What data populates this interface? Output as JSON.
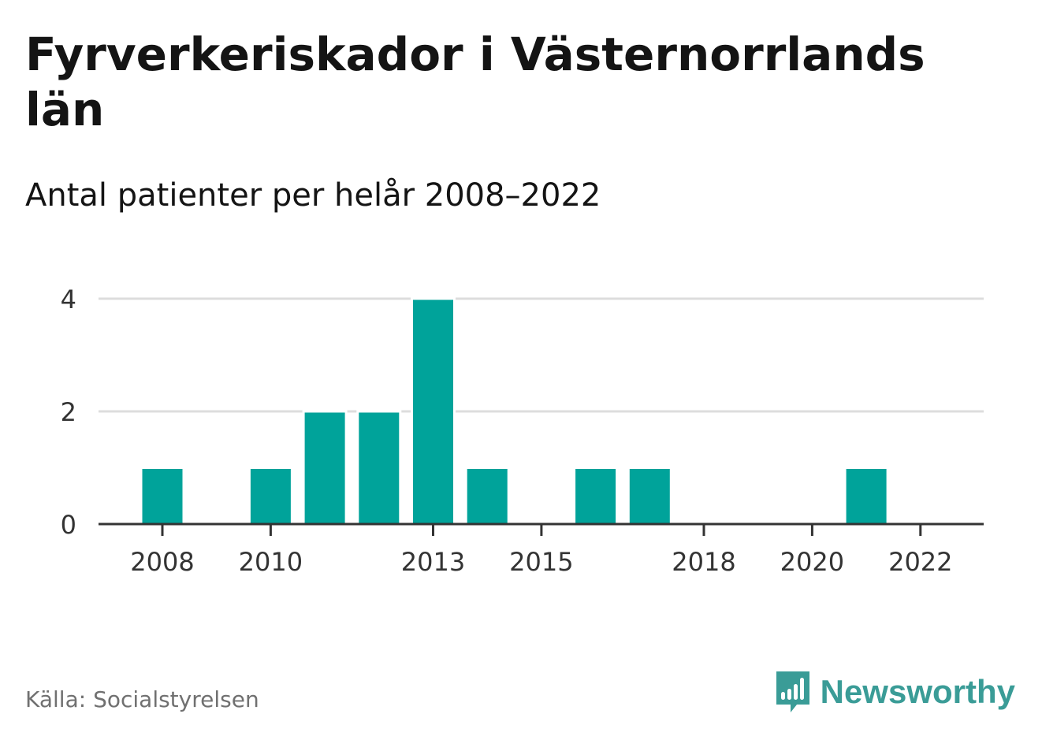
{
  "title": "Fyrverkeriskador i Västernorrlands län",
  "subtitle": "Antal patienter per helår 2008–2022",
  "source": "Källa: Socialstyrelsen",
  "brand": {
    "name": "Newsworthy",
    "logo_icon": "newsworthy-bar-chart-logo"
  },
  "colors": {
    "bar": "#00a39a",
    "grid": "#dddddd",
    "axis": "#333333",
    "brand": "#3a9c97"
  },
  "chart_data": {
    "type": "bar",
    "categories": [
      "2008",
      "2009",
      "2010",
      "2011",
      "2012",
      "2013",
      "2014",
      "2015",
      "2016",
      "2017",
      "2018",
      "2019",
      "2020",
      "2021",
      "2022"
    ],
    "values": [
      1,
      0,
      1,
      2,
      2,
      4,
      1,
      0,
      1,
      1,
      0,
      0,
      0,
      1,
      0
    ],
    "x_tick_labels": [
      "2008",
      "2010",
      "2013",
      "2015",
      "2018",
      "2020",
      "2022"
    ],
    "y_ticks": [
      0,
      2,
      4
    ],
    "ylim": [
      0,
      4
    ],
    "grid": true,
    "xlabel": "",
    "ylabel": ""
  }
}
